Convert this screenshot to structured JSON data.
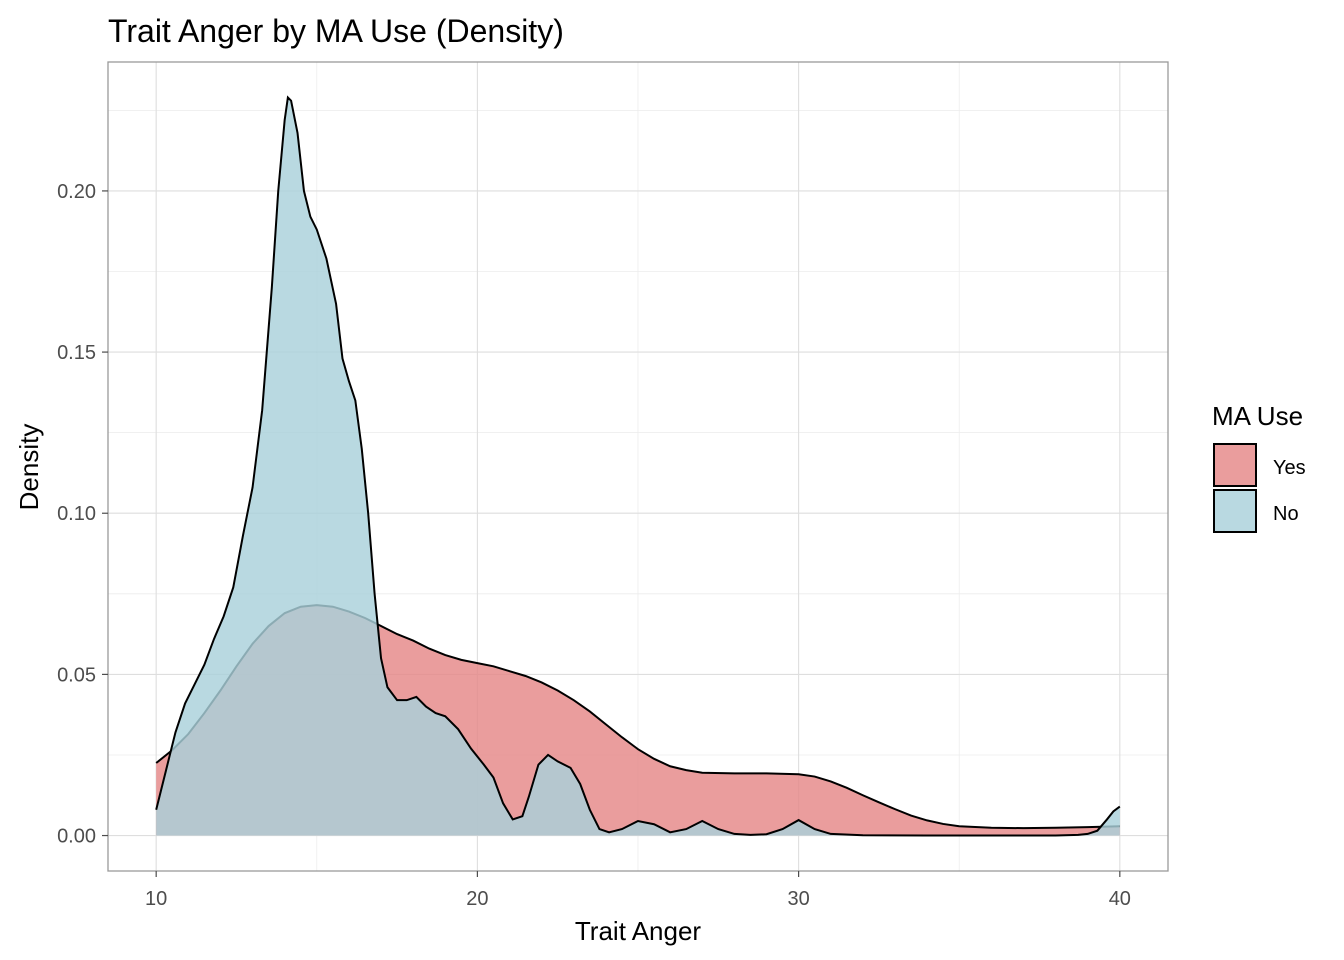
{
  "chart_data": {
    "type": "area",
    "title": "Trait Anger by MA Use (Density)",
    "xlabel": "Trait Anger",
    "ylabel": "Density",
    "xlim": [
      8.5,
      41.5
    ],
    "ylim": [
      -0.011,
      0.24
    ],
    "x_ticks": [
      10,
      20,
      30,
      40
    ],
    "x_tick_labels": [
      "10",
      "20",
      "30",
      "40"
    ],
    "y_ticks": [
      0,
      0.05,
      0.1,
      0.15,
      0.2
    ],
    "y_tick_labels": [
      "0.00",
      "0.05",
      "0.10",
      "0.15",
      "0.20"
    ],
    "grid": true,
    "legend": {
      "title": "MA Use",
      "position": "right"
    },
    "series": [
      {
        "name": "Yes",
        "fill": "#e58787",
        "stroke": "#000000",
        "points": [
          [
            10,
            0.0225
          ],
          [
            10.5,
            0.0265
          ],
          [
            11,
            0.0315
          ],
          [
            11.5,
            0.038
          ],
          [
            12,
            0.045
          ],
          [
            12.5,
            0.0525
          ],
          [
            13,
            0.0595
          ],
          [
            13.5,
            0.065
          ],
          [
            14,
            0.069
          ],
          [
            14.5,
            0.071
          ],
          [
            15,
            0.0715
          ],
          [
            15.5,
            0.071
          ],
          [
            16,
            0.0695
          ],
          [
            16.5,
            0.0675
          ],
          [
            17,
            0.065
          ],
          [
            17.5,
            0.0625
          ],
          [
            18,
            0.0605
          ],
          [
            18.5,
            0.058
          ],
          [
            19,
            0.056
          ],
          [
            19.5,
            0.0545
          ],
          [
            20,
            0.0535
          ],
          [
            20.5,
            0.0525
          ],
          [
            21,
            0.051
          ],
          [
            21.5,
            0.0495
          ],
          [
            22,
            0.0475
          ],
          [
            22.5,
            0.045
          ],
          [
            23,
            0.042
          ],
          [
            23.5,
            0.0385
          ],
          [
            24,
            0.0345
          ],
          [
            24.5,
            0.0305
          ],
          [
            25,
            0.0268
          ],
          [
            25.5,
            0.0238
          ],
          [
            26,
            0.0215
          ],
          [
            26.5,
            0.0203
          ],
          [
            27,
            0.0195
          ],
          [
            28,
            0.0193
          ],
          [
            29,
            0.0193
          ],
          [
            30,
            0.019
          ],
          [
            30.5,
            0.0183
          ],
          [
            31,
            0.0168
          ],
          [
            31.5,
            0.0148
          ],
          [
            32,
            0.0125
          ],
          [
            32.5,
            0.0103
          ],
          [
            33,
            0.0082
          ],
          [
            33.5,
            0.0062
          ],
          [
            34,
            0.0047
          ],
          [
            34.5,
            0.0036
          ],
          [
            35,
            0.0029
          ],
          [
            36,
            0.0024
          ],
          [
            37,
            0.0023
          ],
          [
            38,
            0.0024
          ],
          [
            39,
            0.0026
          ],
          [
            40,
            0.0029
          ]
        ]
      },
      {
        "name": "No",
        "fill": "#a9d1da",
        "stroke": "#000000",
        "points": [
          [
            10,
            0.008
          ],
          [
            10.3,
            0.02
          ],
          [
            10.6,
            0.032
          ],
          [
            10.9,
            0.041
          ],
          [
            11.2,
            0.047
          ],
          [
            11.5,
            0.053
          ],
          [
            11.8,
            0.061
          ],
          [
            12.1,
            0.068
          ],
          [
            12.4,
            0.077
          ],
          [
            12.7,
            0.093
          ],
          [
            13,
            0.108
          ],
          [
            13.3,
            0.132
          ],
          [
            13.6,
            0.17
          ],
          [
            13.8,
            0.2
          ],
          [
            14,
            0.222
          ],
          [
            14.1,
            0.229
          ],
          [
            14.2,
            0.228
          ],
          [
            14.4,
            0.218
          ],
          [
            14.6,
            0.2
          ],
          [
            14.8,
            0.192
          ],
          [
            15,
            0.188
          ],
          [
            15.3,
            0.179
          ],
          [
            15.6,
            0.165
          ],
          [
            15.8,
            0.148
          ],
          [
            16,
            0.141
          ],
          [
            16.2,
            0.135
          ],
          [
            16.4,
            0.12
          ],
          [
            16.6,
            0.1
          ],
          [
            16.8,
            0.075
          ],
          [
            17,
            0.055
          ],
          [
            17.2,
            0.046
          ],
          [
            17.5,
            0.042
          ],
          [
            17.8,
            0.042
          ],
          [
            18.1,
            0.043
          ],
          [
            18.4,
            0.04
          ],
          [
            18.7,
            0.038
          ],
          [
            19,
            0.037
          ],
          [
            19.4,
            0.033
          ],
          [
            19.8,
            0.027
          ],
          [
            20.2,
            0.022
          ],
          [
            20.5,
            0.018
          ],
          [
            20.8,
            0.01
          ],
          [
            21.1,
            0.005
          ],
          [
            21.4,
            0.006
          ],
          [
            21.6,
            0.012
          ],
          [
            21.9,
            0.022
          ],
          [
            22.2,
            0.025
          ],
          [
            22.5,
            0.023
          ],
          [
            22.9,
            0.021
          ],
          [
            23.2,
            0.016
          ],
          [
            23.5,
            0.008
          ],
          [
            23.8,
            0.002
          ],
          [
            24.1,
            0.001
          ],
          [
            24.5,
            0.002
          ],
          [
            25,
            0.0045
          ],
          [
            25.5,
            0.0035
          ],
          [
            26,
            0.001
          ],
          [
            26.5,
            0.002
          ],
          [
            27,
            0.0045
          ],
          [
            27.5,
            0.002
          ],
          [
            28,
            0.0005
          ],
          [
            28.5,
            0.0002
          ],
          [
            29,
            0.0004
          ],
          [
            29.5,
            0.002
          ],
          [
            30,
            0.0048
          ],
          [
            30.5,
            0.002
          ],
          [
            31,
            0.0005
          ],
          [
            32,
            0.0001
          ],
          [
            34,
            0.0
          ],
          [
            36,
            0.0
          ],
          [
            38,
            0.0
          ],
          [
            38.7,
            0.0002
          ],
          [
            39,
            0.0005
          ],
          [
            39.3,
            0.0015
          ],
          [
            39.6,
            0.005
          ],
          [
            39.8,
            0.0075
          ],
          [
            40,
            0.009
          ]
        ]
      }
    ]
  }
}
